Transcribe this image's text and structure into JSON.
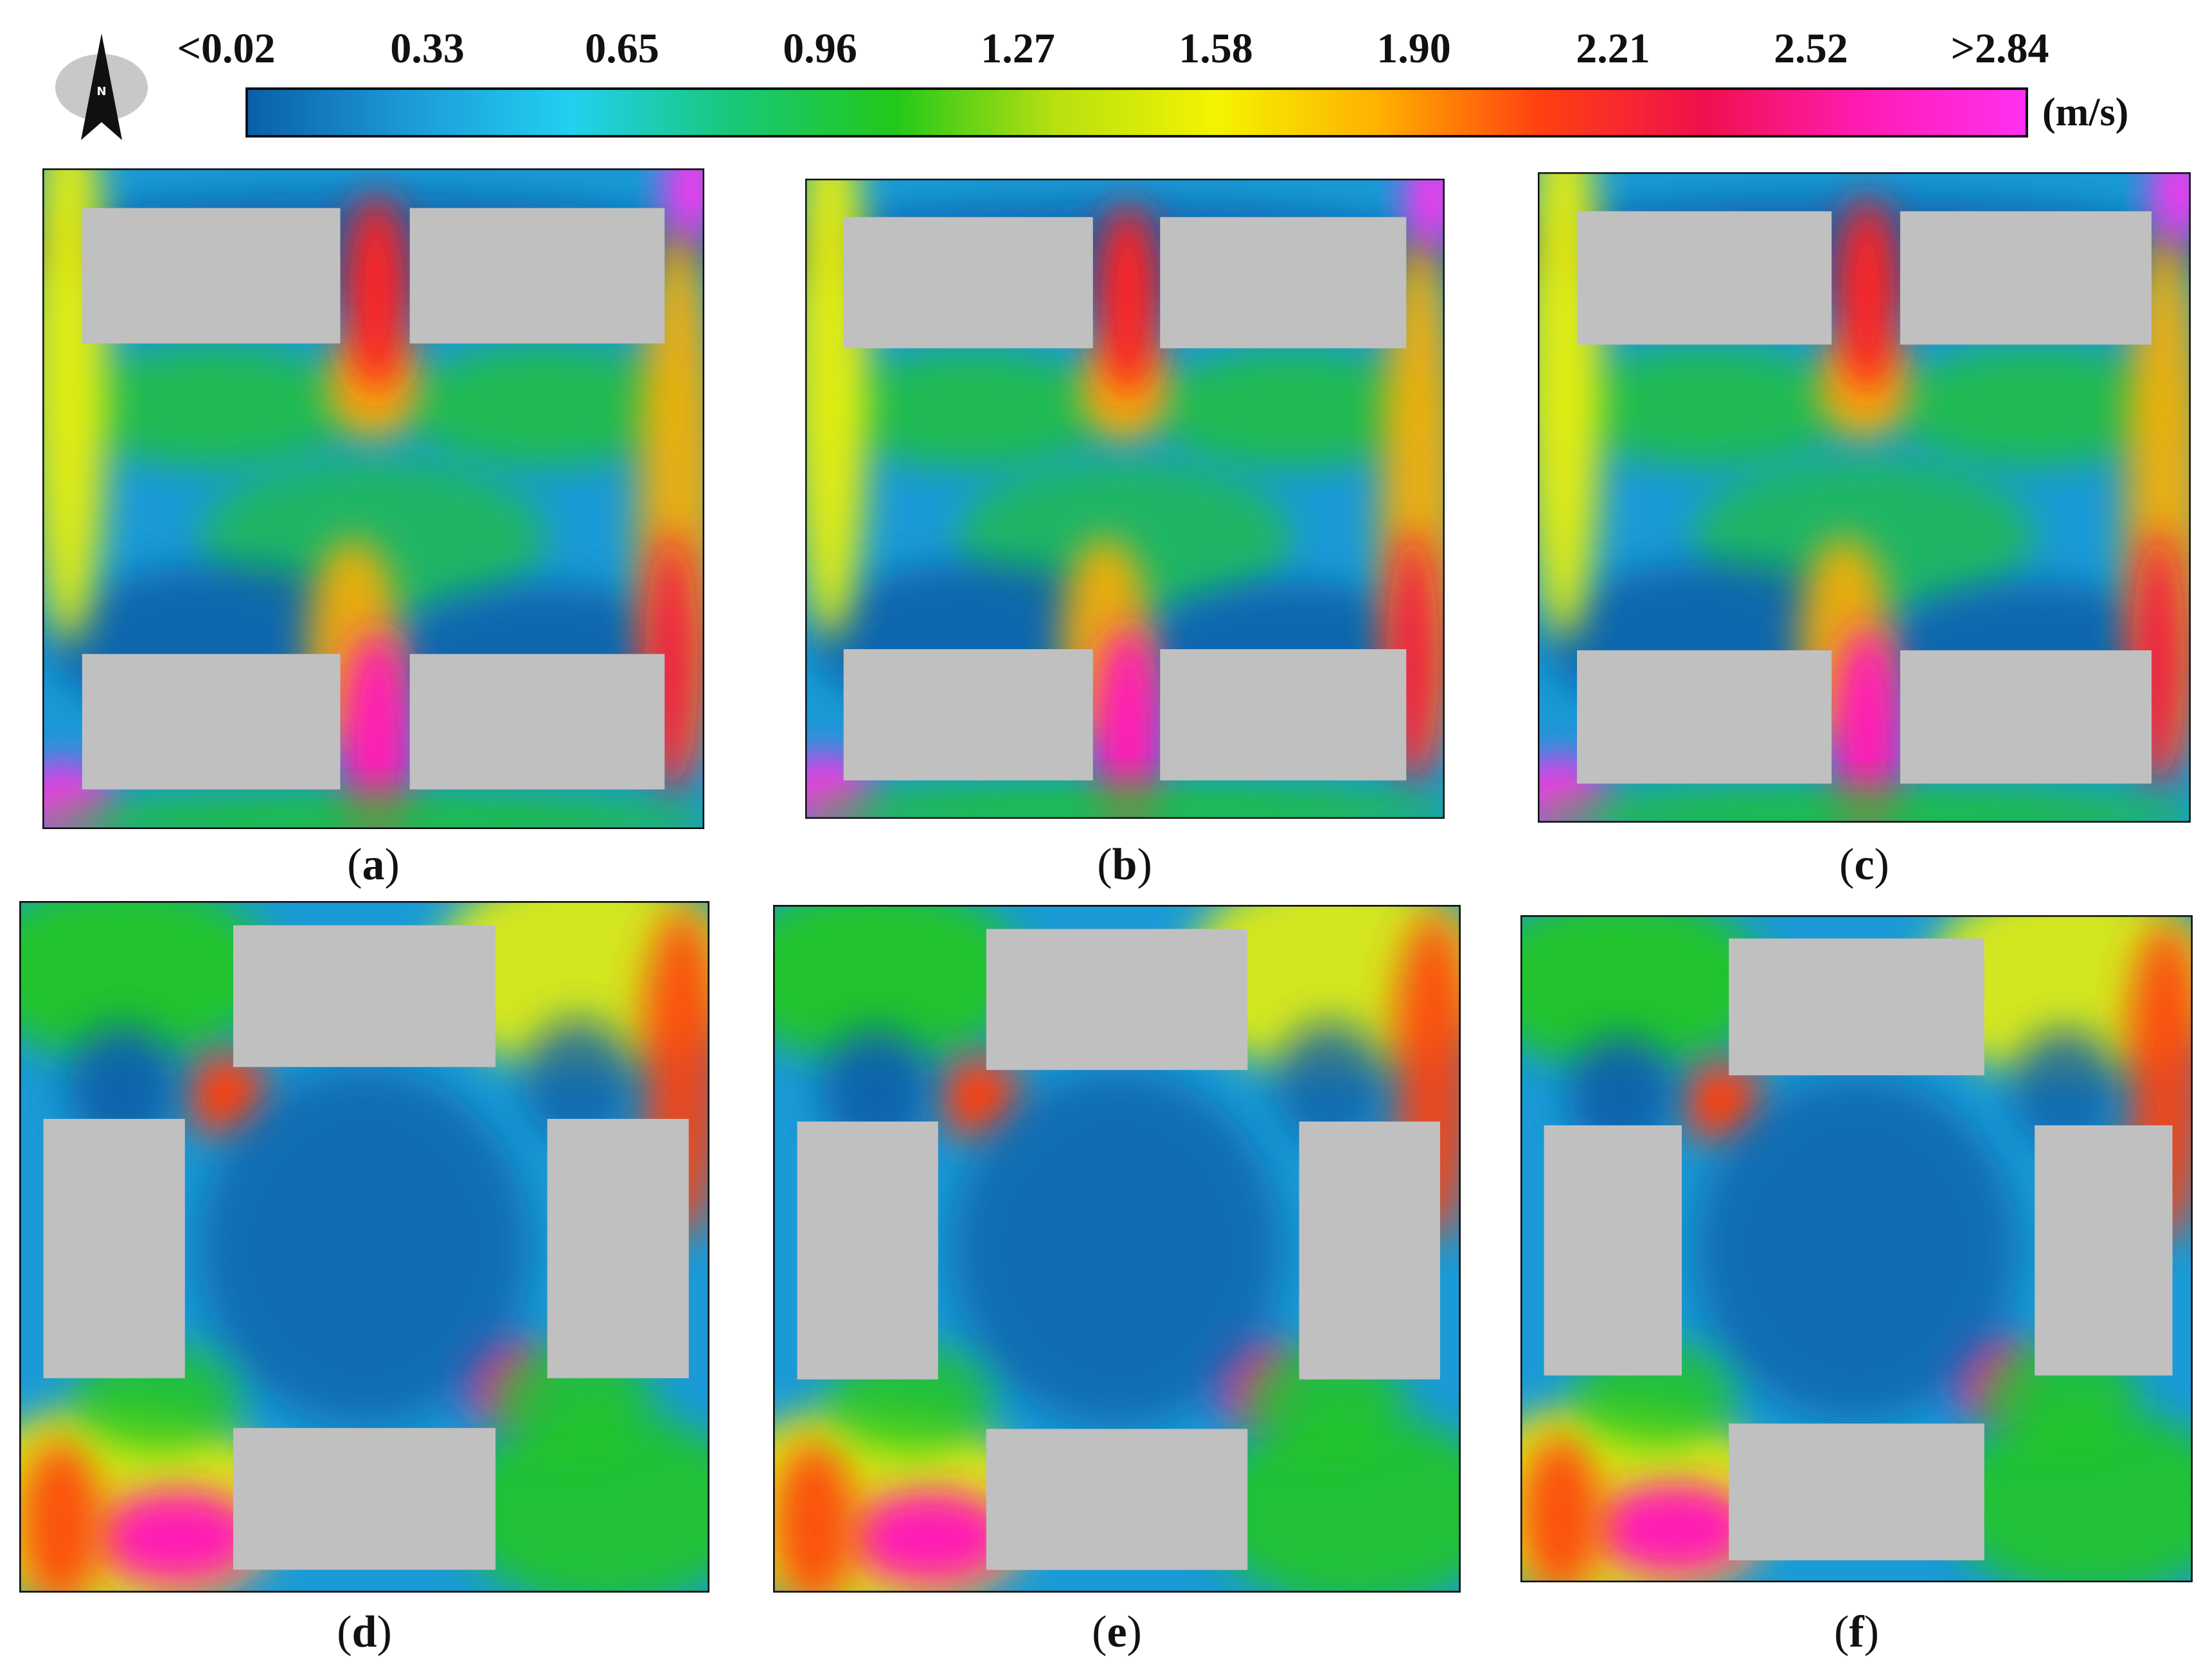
{
  "colorbar": {
    "ticks": [
      "<0.02",
      "0.33",
      "0.65",
      "0.96",
      "1.27",
      "1.58",
      "1.90",
      "2.21",
      "2.52",
      ">2.84"
    ],
    "unit": "(m/s)",
    "stops": [
      "#0a5fa8",
      "#1c9bd8",
      "#22d0f0",
      "#18c878",
      "#22c81a",
      "#b8e010",
      "#f4f400",
      "#ffb000",
      "#ff4010",
      "#f0104c",
      "#ff1cb4",
      "#ff30f0"
    ]
  },
  "north_arrow": {
    "label": "N"
  },
  "panels": [
    {
      "caption": "a",
      "layout": "rows"
    },
    {
      "caption": "b",
      "layout": "rows"
    },
    {
      "caption": "c",
      "layout": "rows"
    },
    {
      "caption": "d",
      "layout": "enclosed"
    },
    {
      "caption": "e",
      "layout": "enclosed"
    },
    {
      "caption": "f",
      "layout": "enclosed"
    }
  ]
}
